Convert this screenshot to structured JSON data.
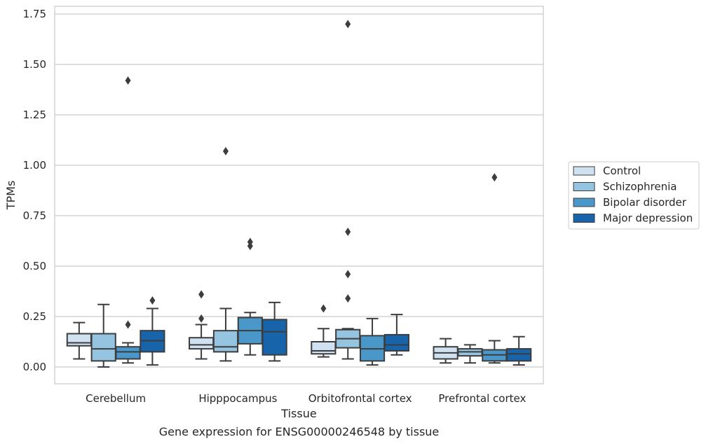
{
  "chart_data": {
    "type": "box",
    "title": "",
    "caption": "Gene expression for ENSG00000246548 by tissue",
    "xlabel": "Tissue",
    "ylabel": "TPMs",
    "ylim": [
      -0.08,
      1.78
    ],
    "yticks": [
      0.0,
      0.25,
      0.5,
      0.75,
      1.0,
      1.25,
      1.5,
      1.75
    ],
    "ytick_labels": [
      "0.00",
      "0.25",
      "0.50",
      "0.75",
      "1.00",
      "1.25",
      "1.50",
      "1.75"
    ],
    "grid": "horizontal",
    "legend_position": "right",
    "categories": [
      "Cerebellum",
      "Hipppocampus",
      "Orbitofrontal cortex",
      "Prefrontal cortex"
    ],
    "series": [
      {
        "name": "Control",
        "color": "#d0e1f2",
        "boxes": [
          {
            "whislo": 0.04,
            "q1": 0.105,
            "med": 0.12,
            "q3": 0.165,
            "whishi": 0.22,
            "fliers": []
          },
          {
            "whislo": 0.04,
            "q1": 0.09,
            "med": 0.11,
            "q3": 0.145,
            "whishi": 0.21,
            "fliers": [
              0.24,
              0.36
            ]
          },
          {
            "whislo": 0.05,
            "q1": 0.065,
            "med": 0.08,
            "q3": 0.125,
            "whishi": 0.19,
            "fliers": [
              0.29
            ]
          },
          {
            "whislo": 0.02,
            "q1": 0.04,
            "med": 0.07,
            "q3": 0.1,
            "whishi": 0.14,
            "fliers": []
          }
        ]
      },
      {
        "name": "Schizophrenia",
        "color": "#94c4df",
        "boxes": [
          {
            "whislo": 0.0,
            "q1": 0.03,
            "med": 0.09,
            "q3": 0.165,
            "whishi": 0.31,
            "fliers": []
          },
          {
            "whislo": 0.03,
            "q1": 0.075,
            "med": 0.1,
            "q3": 0.18,
            "whishi": 0.29,
            "fliers": [
              1.07
            ]
          },
          {
            "whislo": 0.04,
            "q1": 0.095,
            "med": 0.14,
            "q3": 0.185,
            "whishi": 0.19,
            "fliers": [
              0.34,
              0.46,
              0.67,
              1.7
            ]
          },
          {
            "whislo": 0.02,
            "q1": 0.055,
            "med": 0.075,
            "q3": 0.09,
            "whishi": 0.11,
            "fliers": []
          }
        ]
      },
      {
        "name": "Bipolar disorder",
        "color": "#4a98c9",
        "boxes": [
          {
            "whislo": 0.02,
            "q1": 0.04,
            "med": 0.075,
            "q3": 0.1,
            "whishi": 0.12,
            "fliers": [
              0.21,
              1.42
            ]
          },
          {
            "whislo": 0.06,
            "q1": 0.115,
            "med": 0.18,
            "q3": 0.245,
            "whishi": 0.27,
            "fliers": [
              0.6,
              0.62
            ]
          },
          {
            "whislo": 0.01,
            "q1": 0.03,
            "med": 0.09,
            "q3": 0.155,
            "whishi": 0.24,
            "fliers": []
          },
          {
            "whislo": 0.02,
            "q1": 0.03,
            "med": 0.06,
            "q3": 0.085,
            "whishi": 0.13,
            "fliers": [
              0.94
            ]
          }
        ]
      },
      {
        "name": "Major depression",
        "color": "#1764ab",
        "boxes": [
          {
            "whislo": 0.01,
            "q1": 0.075,
            "med": 0.13,
            "q3": 0.18,
            "whishi": 0.29,
            "fliers": [
              0.33
            ]
          },
          {
            "whislo": 0.03,
            "q1": 0.06,
            "med": 0.175,
            "q3": 0.235,
            "whishi": 0.32,
            "fliers": []
          },
          {
            "whislo": 0.06,
            "q1": 0.08,
            "med": 0.11,
            "q3": 0.16,
            "whishi": 0.26,
            "fliers": []
          },
          {
            "whislo": 0.01,
            "q1": 0.03,
            "med": 0.065,
            "q3": 0.09,
            "whishi": 0.15,
            "fliers": []
          }
        ]
      }
    ]
  }
}
